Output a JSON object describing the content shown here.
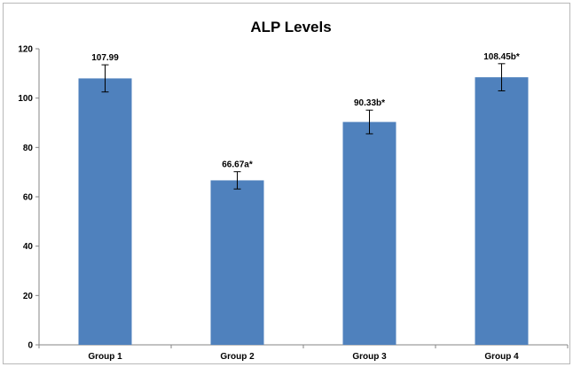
{
  "chart_data": {
    "type": "bar",
    "title": "ALP Levels",
    "xlabel": "",
    "ylabel": "",
    "categories": [
      "Group 1",
      "Group 2",
      "Group 3",
      "Group 4"
    ],
    "values": [
      107.99,
      66.67,
      90.33,
      108.45
    ],
    "error_bars": [
      5.5,
      3.5,
      4.8,
      5.5
    ],
    "data_labels": [
      "107.99",
      "66.67a*",
      "90.33b*",
      "108.45b*"
    ],
    "ylim": [
      0,
      120
    ],
    "yticks": [
      0,
      20,
      40,
      60,
      80,
      100,
      120
    ],
    "grid": false,
    "legend": "none",
    "colors": {
      "bar": "#4f81bd",
      "axis": "#868686",
      "error_bar": "#000000"
    }
  }
}
